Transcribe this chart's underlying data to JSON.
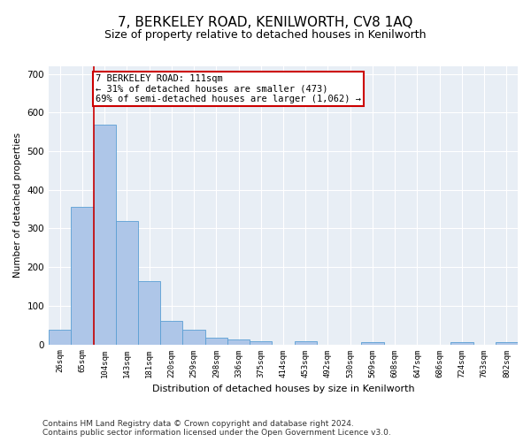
{
  "title": "7, BERKELEY ROAD, KENILWORTH, CV8 1AQ",
  "subtitle": "Size of property relative to detached houses in Kenilworth",
  "xlabel": "Distribution of detached houses by size in Kenilworth",
  "ylabel": "Number of detached properties",
  "footer_line1": "Contains HM Land Registry data © Crown copyright and database right 2024.",
  "footer_line2": "Contains public sector information licensed under the Open Government Licence v3.0.",
  "bar_labels": [
    "26sqm",
    "65sqm",
    "104sqm",
    "143sqm",
    "181sqm",
    "220sqm",
    "259sqm",
    "298sqm",
    "336sqm",
    "375sqm",
    "414sqm",
    "453sqm",
    "492sqm",
    "530sqm",
    "569sqm",
    "608sqm",
    "647sqm",
    "686sqm",
    "724sqm",
    "763sqm",
    "802sqm"
  ],
  "bar_values": [
    38,
    355,
    570,
    320,
    163,
    60,
    38,
    18,
    12,
    8,
    0,
    8,
    0,
    0,
    5,
    0,
    0,
    0,
    5,
    0,
    5
  ],
  "bar_color": "#aec6e8",
  "bar_edge_color": "#5a9fd4",
  "annotation_text": "7 BERKELEY ROAD: 111sqm\n← 31% of detached houses are smaller (473)\n69% of semi-detached houses are larger (1,062) →",
  "annotation_box_color": "#ffffff",
  "annotation_box_edge_color": "#cc0000",
  "vline_color": "#cc0000",
  "ylim": [
    0,
    720
  ],
  "yticks": [
    0,
    100,
    200,
    300,
    400,
    500,
    600,
    700
  ],
  "plot_bg_color": "#e8eef5",
  "title_fontsize": 11,
  "subtitle_fontsize": 9,
  "annotation_fontsize": 7.5,
  "footer_fontsize": 6.5
}
